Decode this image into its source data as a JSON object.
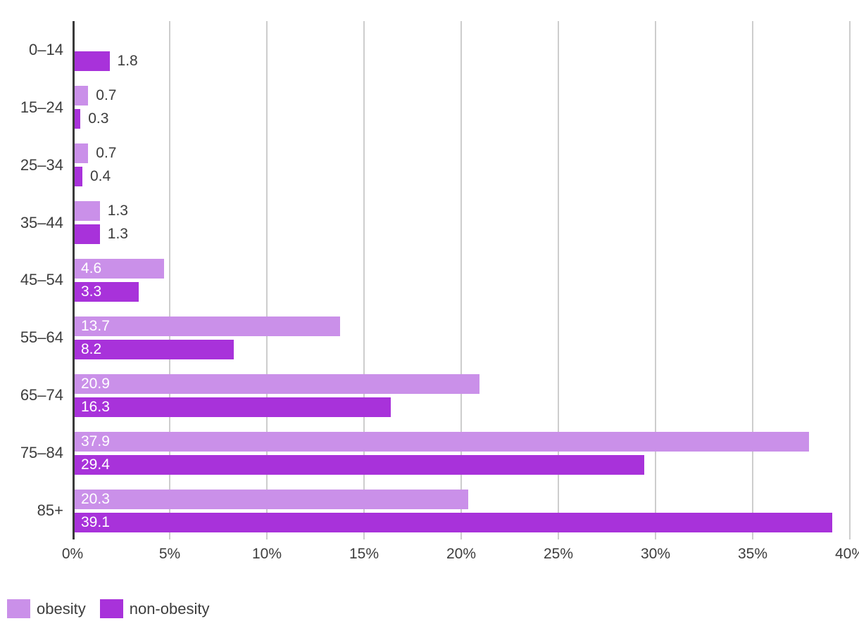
{
  "chart_data": {
    "type": "bar",
    "orientation": "horizontal",
    "title": "",
    "xlabel": "",
    "ylabel": "",
    "categories": [
      "0–14",
      "15–24",
      "25–34",
      "35–44",
      "45–54",
      "55–64",
      "65–74",
      "75–84",
      "85+"
    ],
    "series": [
      {
        "name": "obesity",
        "color": "#ca90e9",
        "values": [
          null,
          0.7,
          0.7,
          1.3,
          4.6,
          13.7,
          20.9,
          37.9,
          20.3
        ]
      },
      {
        "name": "non-obesity",
        "color": "#a832da",
        "values": [
          1.8,
          0.3,
          0.4,
          1.3,
          3.3,
          8.2,
          16.3,
          29.4,
          39.1
        ]
      }
    ],
    "x_ticks": [
      "0%",
      "5%",
      "10%",
      "15%",
      "20%",
      "25%",
      "30%",
      "35%",
      "40%"
    ],
    "xlim": [
      0,
      40
    ],
    "grid": true,
    "inside_label_min_value": 3,
    "legend_position": "bottom-left",
    "colors": {
      "axis_line": "#3a3a3a",
      "gridline": "#cdcdcd",
      "tick_text": "#3d3d3d",
      "value_label_inside": "#ffffff",
      "value_label_outside": "#3d3d3d",
      "background": "#ffffff"
    }
  }
}
